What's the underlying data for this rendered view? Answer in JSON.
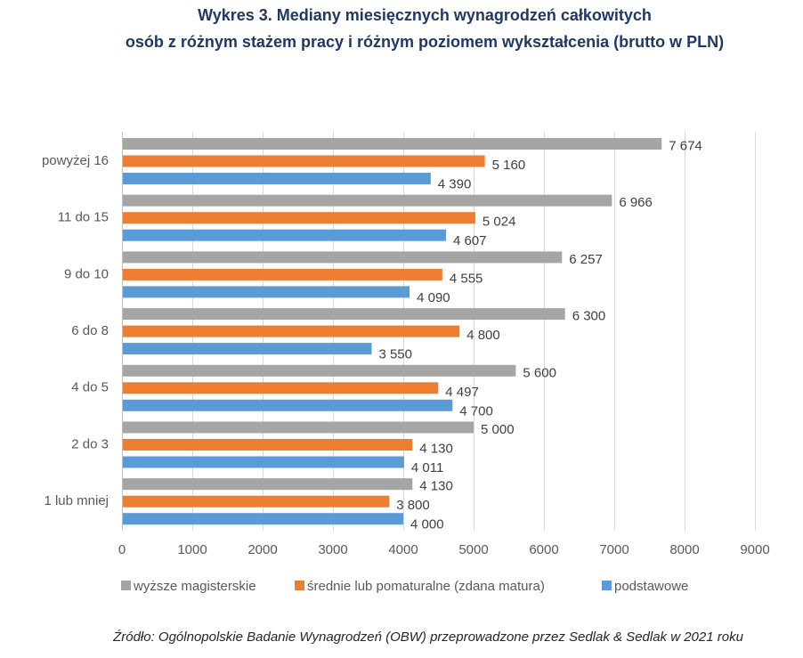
{
  "colors": {
    "title": "#1F3864",
    "axis_text": "#595959",
    "label_text": "#404040",
    "gridline": "#D9D9D9",
    "axis_line": "#BFBFBF",
    "source_text": "#262626"
  },
  "source": "Źródło: Ogólnopolskie Badanie Wynagrodzeń (OBW) przeprowadzone przez Sedlak & Sedlak w 2021 roku",
  "chart_data": {
    "type": "bar",
    "orientation": "horizontal",
    "title": [
      "Wykres 3. Mediany miesięcznych wynagrodzeń całkowitych",
      "osób z różnym stażem pracy i różnym poziomem wykształcenia (brutto w PLN)"
    ],
    "categories": [
      "powyżej 16",
      "11 do 15",
      "9 do 10",
      "6 do 8",
      "4 do 5",
      "2 do 3",
      "1 lub mniej"
    ],
    "series": [
      {
        "name": "wyższe magisterskie",
        "color": "#A5A5A5",
        "values": [
          7674,
          6966,
          6257,
          6300,
          5600,
          5000,
          4130
        ],
        "data_labels": [
          "7 674",
          "6 966",
          "6 257",
          "6 300",
          "5 600",
          "5 000",
          "4 130"
        ]
      },
      {
        "name": "średnie lub pomaturalne (zdana matura)",
        "color": "#ED7D31",
        "values": [
          5160,
          5024,
          4555,
          4800,
          4497,
          4130,
          3800
        ],
        "data_labels": [
          "5 160",
          "5 024",
          "4 555",
          "4 800",
          "4 497",
          "4 130",
          "3 800"
        ]
      },
      {
        "name": "podstawowe",
        "color": "#5B9BD5",
        "values": [
          4390,
          4607,
          4090,
          3550,
          4700,
          4011,
          4000
        ],
        "data_labels": [
          "4 390",
          "4 607",
          "4 090",
          "3 550",
          "4 700",
          "4 011",
          "4 000"
        ]
      }
    ],
    "xlim": [
      0,
      9000
    ],
    "xticks": [
      0,
      1000,
      2000,
      3000,
      4000,
      5000,
      6000,
      7000,
      8000,
      9000
    ],
    "xtick_labels": [
      "0",
      "1000",
      "2000",
      "3000",
      "4000",
      "5000",
      "6000",
      "7000",
      "8000",
      "9000"
    ],
    "grid": true,
    "legend": "bottom"
  }
}
